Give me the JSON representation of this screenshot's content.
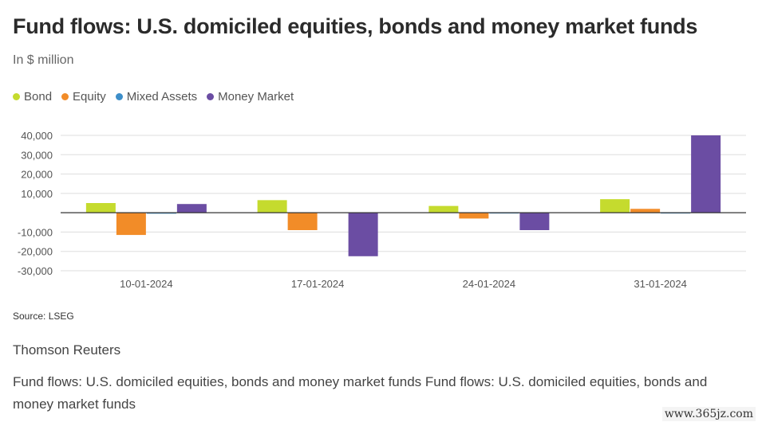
{
  "title": "Fund flows: U.S. domiciled equities, bonds and money market funds",
  "subtitle": "In $ million",
  "legend": [
    {
      "label": "Bond",
      "color": "#c5db2e"
    },
    {
      "label": "Equity",
      "color": "#f28c28"
    },
    {
      "label": "Mixed Assets",
      "color": "#3d8ec9"
    },
    {
      "label": "Money Market",
      "color": "#6b4da3"
    }
  ],
  "source": "Source: LSEG",
  "credit": "Thomson Reuters",
  "caption": "Fund flows: U.S. domiciled equities, bonds and money market funds Fund flows: U.S. domiciled equities, bonds and money market funds",
  "watermark": "www.365jz.com",
  "chart_data": {
    "type": "bar",
    "title": "Fund flows: U.S. domiciled equities, bonds and money market funds",
    "ylabel": "In $ million",
    "xlabel": "",
    "categories": [
      "10-01-2024",
      "17-01-2024",
      "24-01-2024",
      "31-01-2024"
    ],
    "series": [
      {
        "name": "Bond",
        "color": "#c5db2e",
        "values": [
          5000,
          6500,
          3500,
          7000
        ]
      },
      {
        "name": "Equity",
        "color": "#f28c28",
        "values": [
          -11500,
          -9000,
          -3000,
          2000
        ]
      },
      {
        "name": "Mixed Assets",
        "color": "#3d8ec9",
        "values": [
          -500,
          0,
          -300,
          -300
        ]
      },
      {
        "name": "Money Market",
        "color": "#6b4da3",
        "values": [
          4500,
          -22500,
          -9000,
          40000
        ]
      }
    ],
    "ylim": [
      -30000,
      40000
    ],
    "yticks": [
      40000,
      30000,
      20000,
      10000,
      0,
      -10000,
      -20000,
      -30000
    ],
    "ytick_labels": [
      "40,000",
      "30,000",
      "20,000",
      "10,000",
      "",
      "-10,000",
      "-20,000",
      "-30,000"
    ],
    "grid": true,
    "legend_position": "top-left"
  }
}
